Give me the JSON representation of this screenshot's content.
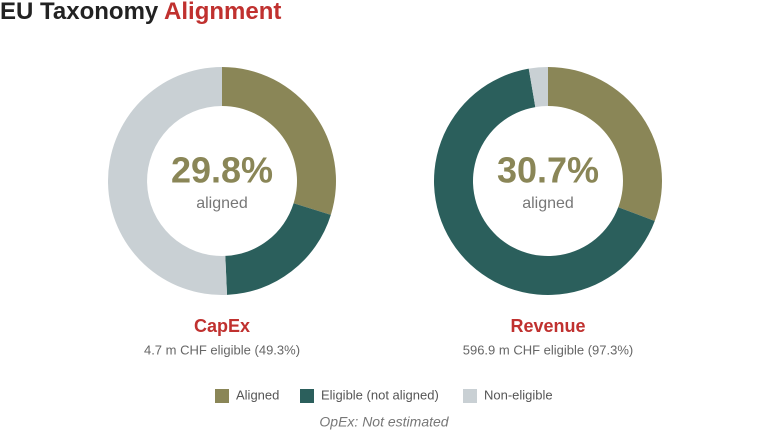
{
  "header": {
    "title": "EU Taxonomy",
    "title_highlight": "Alignment"
  },
  "legend": {
    "categories": [
      "Aligned",
      "Eligible (not aligned)",
      "Non-eligible"
    ],
    "colors": [
      "#8a8657",
      "#2b5f5c",
      "#c9d0d4"
    ]
  },
  "chart_data": [
    {
      "type": "pie",
      "title": "CapEx",
      "subtitle": "4.7 m CHF eligible (49.3%)",
      "values": [
        29.8,
        19.5,
        50.7
      ],
      "value_labels": [
        "29.8%",
        null,
        null
      ],
      "center_caption": "aligned"
    },
    {
      "type": "pie",
      "title": "Revenue",
      "subtitle": "596.9 m CHF eligible (97.3%)",
      "values": [
        30.7,
        66.6,
        2.7
      ],
      "value_labels": [
        "30.7%",
        null,
        null
      ],
      "center_caption": "aligned"
    }
  ],
  "footnote": "OpEx: Not estimated"
}
